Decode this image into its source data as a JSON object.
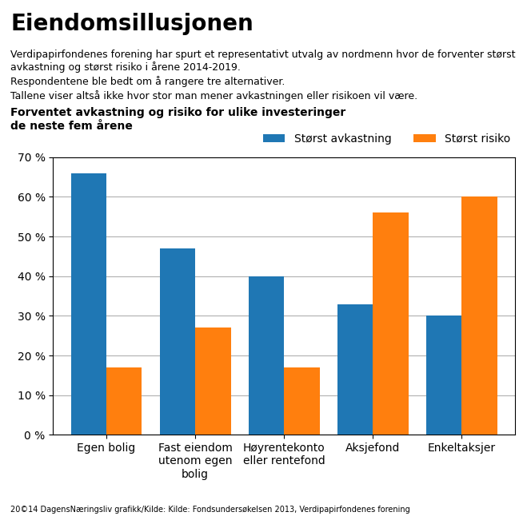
{
  "chart_data": {
    "type": "bar",
    "title": "Eiendomsillusjonen",
    "subtitle": "Forventet avkastning og risiko for ulike investeringer\nde neste fem årene",
    "annotations": [
      "Verdipapirfondenes forening har spurt et representativt utvalg av nordmenn hvor de forventer størst avkastning og størst risiko i årene 2014-2019.",
      "Respondentene ble bedt om å rangere tre alternativer.",
      "Tallene viser altså ikke hvor stor man mener avkastningen eller risikoen vil være.",
      "20©14 DagensNæringsliv grafikk/Kilde: Kilde: Fondsundersøkelsen 2013, Verdipapirfondenes forening"
    ],
    "categories": [
      "Egen bolig",
      "Fast eiendom\nutenom egen\nbolig",
      "Høyrentekonto\neller rentefond",
      "Aksjefond",
      "Enkeltaksjer"
    ],
    "series": [
      {
        "name": "Størst avkastning",
        "values": [
          66,
          47,
          40,
          33,
          30
        ]
      },
      {
        "name": "Størst risiko",
        "values": [
          17,
          27,
          17,
          56,
          60
        ]
      }
    ],
    "ylim": [
      0,
      70
    ],
    "yticks": [
      {
        "value": 0,
        "label": "0 %"
      },
      {
        "value": 10,
        "label": "10 %"
      },
      {
        "value": 20,
        "label": "20 %"
      },
      {
        "value": 30,
        "label": "30 %"
      },
      {
        "value": 40,
        "label": "40 %"
      },
      {
        "value": 50,
        "label": "50 %"
      },
      {
        "value": 60,
        "label": "60 %"
      },
      {
        "value": 70,
        "label": "70 %"
      }
    ],
    "grid": true,
    "legend": "upper right"
  }
}
